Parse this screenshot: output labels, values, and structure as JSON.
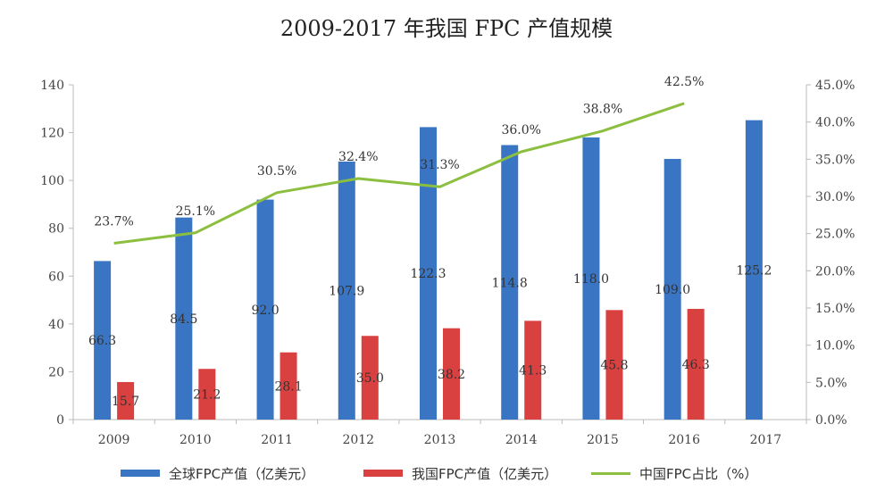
{
  "chart_data": {
    "type": "bar",
    "title": "2009-2017 年我国 FPC 产值规模",
    "categories": [
      "2009",
      "2010",
      "2011",
      "2012",
      "2013",
      "2014",
      "2015",
      "2016",
      "2017"
    ],
    "series": [
      {
        "name": "全球FPC产值（亿美元）",
        "type": "bar",
        "axis": "left",
        "color": "#3a75c4",
        "values": [
          66.3,
          84.5,
          92.0,
          107.9,
          122.3,
          114.8,
          118.0,
          109.0,
          125.2
        ],
        "labels": [
          "66.3",
          "84.5",
          "92.0",
          "107.9",
          "122.3",
          "114.8",
          "118.0",
          "109.0",
          "125.2"
        ]
      },
      {
        "name": "我国FPC产值（亿美元）",
        "type": "bar",
        "axis": "left",
        "color": "#d94040",
        "values": [
          15.7,
          21.2,
          28.1,
          35.0,
          38.2,
          41.3,
          45.8,
          46.3,
          null
        ],
        "labels": [
          "15.7",
          "21.2",
          "28.1",
          "35.0",
          "38.2",
          "41.3",
          "45.8",
          "46.3",
          ""
        ]
      },
      {
        "name": "中国FPC占比（%）",
        "type": "line",
        "axis": "right",
        "color": "#8cbf3f",
        "values": [
          23.7,
          25.1,
          30.5,
          32.4,
          31.3,
          36.0,
          38.8,
          42.5,
          null
        ],
        "labels": [
          "23.7%",
          "25.1%",
          "30.5%",
          "32.4%",
          "31.3%",
          "36.0%",
          "38.8%",
          "42.5%",
          ""
        ]
      }
    ],
    "y_left": {
      "min": 0,
      "max": 140,
      "ticks": [
        "0",
        "20",
        "40",
        "60",
        "80",
        "100",
        "120",
        "140"
      ]
    },
    "y_right": {
      "min": 0,
      "max": 45,
      "ticks": [
        "0.0%",
        "5.0%",
        "10.0%",
        "15.0%",
        "20.0%",
        "25.0%",
        "30.0%",
        "35.0%",
        "40.0%",
        "45.0%"
      ]
    },
    "grid": false,
    "legend_position": "bottom"
  }
}
